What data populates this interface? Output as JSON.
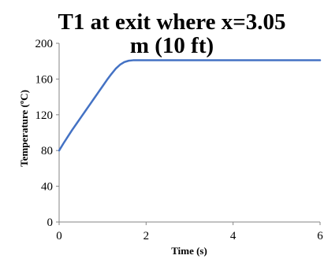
{
  "colors": {
    "series": "#4472C4",
    "axis": "#868686",
    "text": "#000000"
  },
  "chart_data": {
    "type": "line",
    "title_lines": [
      "T1 at exit where x=3.05",
      "m (10 ft)"
    ],
    "xlabel": "Time (s)",
    "ylabel": "Temperature (ºC)",
    "xlim": [
      0,
      6
    ],
    "ylim": [
      0,
      200
    ],
    "xticks": [
      0,
      2,
      4,
      6
    ],
    "yticks": [
      0,
      40,
      80,
      120,
      160,
      200
    ],
    "grid": false,
    "legend": "none",
    "series": [
      {
        "x": [
          0,
          0.1,
          0.2,
          0.3,
          0.4,
          0.5,
          0.6,
          0.7,
          0.8,
          0.9,
          1.0,
          1.1,
          1.2,
          1.3,
          1.4,
          1.5,
          1.6,
          1.7,
          1.8,
          1.9,
          2.0,
          2.5,
          3.0,
          4.0,
          5.0,
          6.0
        ],
        "y": [
          80,
          88,
          95.5,
          103,
          110,
          117,
          124,
          131,
          138,
          145,
          152,
          159,
          165.5,
          171.5,
          176,
          179,
          180.5,
          181,
          181,
          181,
          181,
          181,
          181,
          181,
          181,
          181
        ]
      }
    ]
  }
}
